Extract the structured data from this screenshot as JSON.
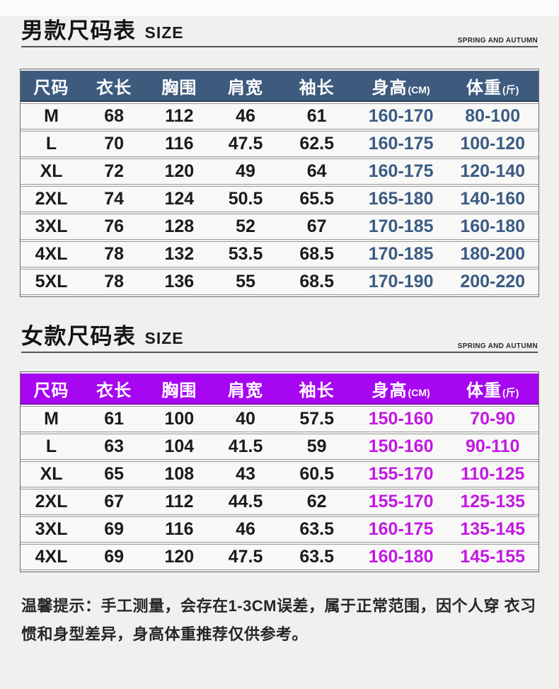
{
  "page": {
    "bg": "#f0f0ee",
    "top_strip": "#fcfcfc"
  },
  "sections": [
    {
      "id": "men",
      "title": "男款尺码表",
      "title_en": "SIZE",
      "season": "SPRING AND AUTUMN",
      "theme": {
        "header_bg": "#3e5b7e",
        "header_edge": "#2c3c58",
        "accent": "#3a5b85"
      },
      "columns": [
        {
          "label": "尺码",
          "unit": ""
        },
        {
          "label": "衣长",
          "unit": ""
        },
        {
          "label": "胸围",
          "unit": ""
        },
        {
          "label": "肩宽",
          "unit": ""
        },
        {
          "label": "袖长",
          "unit": ""
        },
        {
          "label": "身高",
          "unit": "(CM)"
        },
        {
          "label": "体重",
          "unit": "(斤)"
        }
      ],
      "rows": [
        [
          "M",
          "68",
          "112",
          "46",
          "61",
          "160-170",
          "80-100"
        ],
        [
          "L",
          "70",
          "116",
          "47.5",
          "62.5",
          "160-175",
          "100-120"
        ],
        [
          "XL",
          "72",
          "120",
          "49",
          "64",
          "160-175",
          "120-140"
        ],
        [
          "2XL",
          "74",
          "124",
          "50.5",
          "65.5",
          "165-180",
          "140-160"
        ],
        [
          "3XL",
          "76",
          "128",
          "52",
          "67",
          "170-185",
          "160-180"
        ],
        [
          "4XL",
          "78",
          "132",
          "53.5",
          "68.5",
          "170-185",
          "180-200"
        ],
        [
          "5XL",
          "78",
          "136",
          "55",
          "68.5",
          "170-190",
          "200-220"
        ]
      ]
    },
    {
      "id": "women",
      "title": "女款尺码表",
      "title_en": "SIZE",
      "season": "SPRING AND AUTUMN",
      "theme": {
        "header_bg": "#a607f0",
        "header_edge": "#7d05b5",
        "accent": "#c318e4"
      },
      "columns": [
        {
          "label": "尺码",
          "unit": ""
        },
        {
          "label": "衣长",
          "unit": ""
        },
        {
          "label": "胸围",
          "unit": ""
        },
        {
          "label": "肩宽",
          "unit": ""
        },
        {
          "label": "袖长",
          "unit": ""
        },
        {
          "label": "身高",
          "unit": "(CM)"
        },
        {
          "label": "体重",
          "unit": "(斤)"
        }
      ],
      "rows": [
        [
          "M",
          "61",
          "100",
          "40",
          "57.5",
          "150-160",
          "70-90"
        ],
        [
          "L",
          "63",
          "104",
          "41.5",
          "59",
          "150-160",
          "90-110"
        ],
        [
          "XL",
          "65",
          "108",
          "43",
          "60.5",
          "155-170",
          "110-125"
        ],
        [
          "2XL",
          "67",
          "112",
          "44.5",
          "62",
          "155-170",
          "125-135"
        ],
        [
          "3XL",
          "69",
          "116",
          "46",
          "63.5",
          "160-175",
          "135-145"
        ],
        [
          "4XL",
          "69",
          "120",
          "47.5",
          "63.5",
          "160-180",
          "145-155"
        ]
      ]
    }
  ],
  "footer_note": {
    "full": "温馨提示：手工测量，会存在1-3CM误差，属于正常范围，因个人穿衣习惯和身型差异，身高体重推荐仅供参考。",
    "lines": [
      "温馨提示：手工测量，会存在1-3CM误差，属于正常范围，因个人穿",
      "衣习惯和身型差异，身高体重推荐仅供参考。"
    ]
  }
}
